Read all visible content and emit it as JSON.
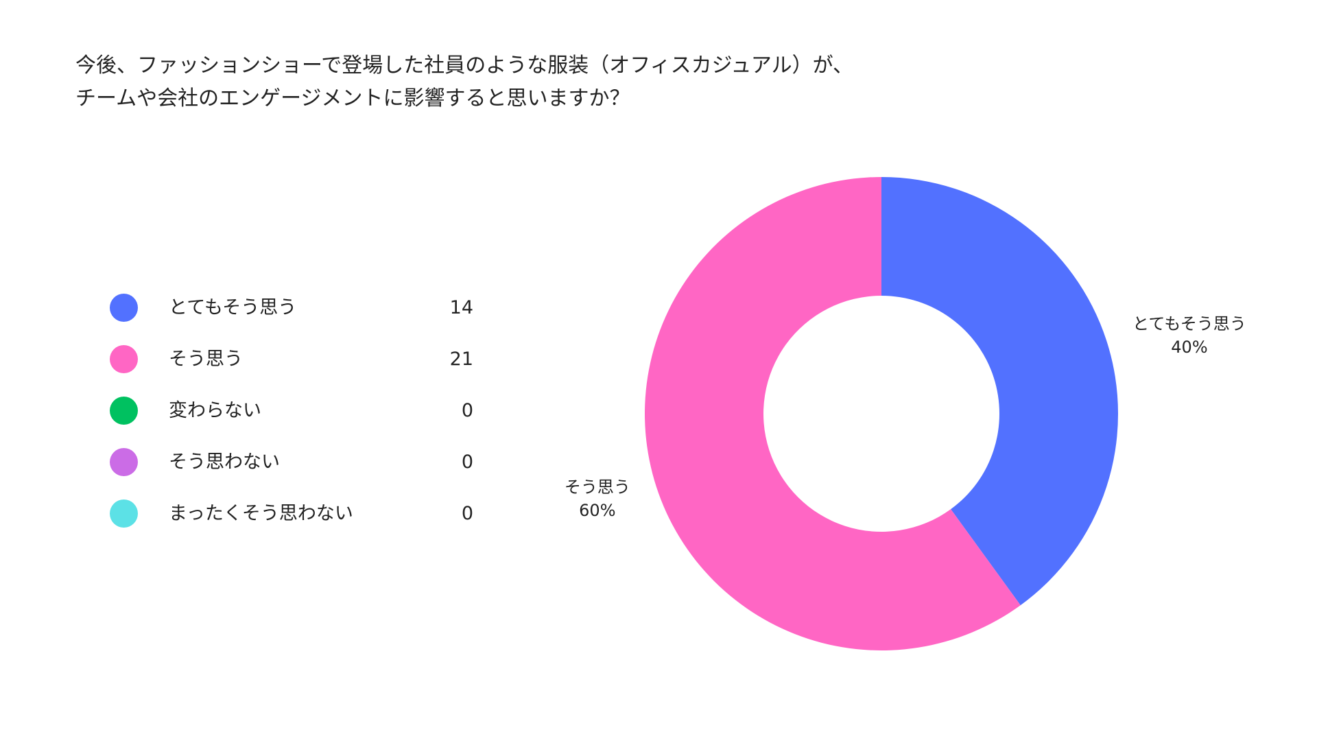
{
  "title_lines": [
    "今後、ファッションショーで登場した社員のような服装（オフィスカジュアル）が、",
    "チームや会社のエンゲージメントに影響すると思いますか？"
  ],
  "colors": {
    "とてもそう思う": "#5271ff",
    "そう思う": "#ff66c4",
    "変わらない": "#00c160",
    "そう思わない": "#cb6ce6",
    "まったくそう思わない": "#5ce1e6"
  },
  "chart_data": {
    "type": "pie",
    "style": "donut",
    "title": "今後、ファッションショーで登場した社員のような服装（オフィスカジュアル）が、チームや会社のエンゲージメントに影響すると思いますか？",
    "categories": [
      "とてもそう思う",
      "そう思う",
      "変わらない",
      "そう思わない",
      "まったくそう思わない"
    ],
    "values": [
      14,
      21,
      0,
      0,
      0
    ],
    "percent_labels": [
      "40%",
      "60%",
      "0%",
      "0%",
      "0%"
    ],
    "legend_position": "left"
  }
}
